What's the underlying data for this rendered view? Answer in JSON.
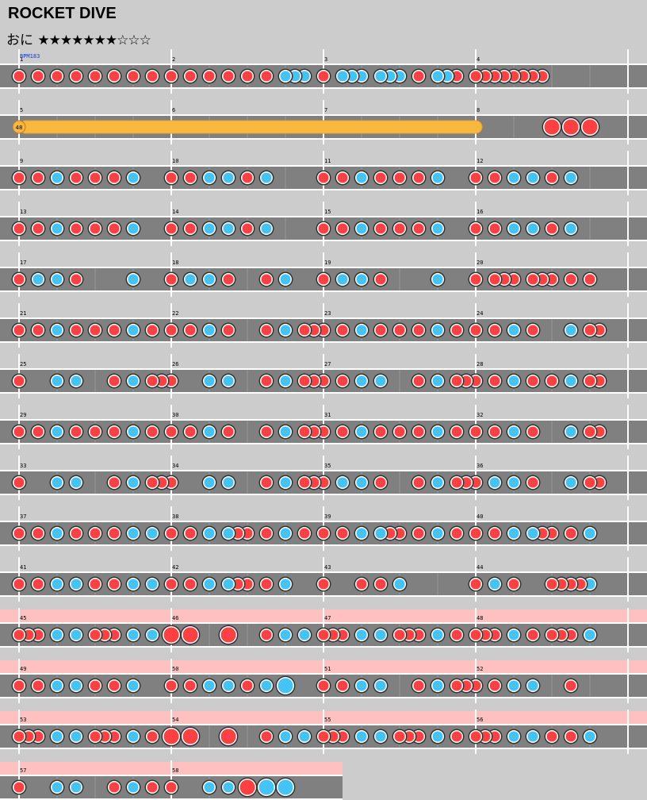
{
  "song": {
    "title": "ROCKET DIVE",
    "difficulty": "おに",
    "stars": "★★★★★★★☆☆☆",
    "bpm_label": "BPM183"
  },
  "colors": {
    "don": "#ff4040",
    "ka": "#44c4f4",
    "roll": "#f8b840",
    "gogo": "#ffc0c0",
    "lane": "#808080"
  },
  "chart_rows": [
    {
      "measures": [
        1,
        2,
        3,
        4
      ],
      "gogo": false,
      "notes": [
        "d 0",
        "d 0.125",
        "d 0.25",
        "d 0.375",
        "d 0.5",
        "d 0.625",
        "d 0.75",
        "d 0.875",
        "d 1",
        "d 1.125",
        "d 1.25",
        "d 1.375",
        "d 1.5",
        "d 1.625",
        "k 1.75",
        "k 1.8125",
        "k 1.875",
        "d 2",
        "k 2.125",
        "k 2.1875",
        "k 2.25",
        "k 2.375",
        "k 2.4375",
        "k 2.5",
        "d 2.625",
        "k 2.75",
        "k 2.8125",
        "d 2.875",
        "d 3.0",
        "d 3.0625",
        "d 3.125",
        "d 3.1875",
        "d 3.25",
        "d 3.3125",
        "d 3.375",
        "d 3.4375"
      ]
    },
    {
      "measures": [
        5,
        6,
        7,
        8
      ],
      "gogo": false,
      "roll": [
        0,
        3.0,
        "48"
      ],
      "notes": [
        "D 3.5",
        "D 3.625",
        "D 3.75"
      ]
    },
    {
      "measures": [
        9,
        10,
        11,
        12
      ],
      "gogo": false,
      "notes": [
        "d 0",
        "d 0.125",
        "k 0.25",
        "d 0.375",
        "d 0.5",
        "d 0.625",
        "k 0.75",
        "d 1",
        "d 1.125",
        "k 1.25",
        "k 1.375",
        "d 1.5",
        "k 1.625",
        "d 2",
        "d 2.125",
        "k 2.25",
        "d 2.375",
        "d 2.5",
        "d 2.625",
        "k 2.75",
        "d 3",
        "d 3.125",
        "k 3.25",
        "k 3.375",
        "d 3.5",
        "k 3.625"
      ]
    },
    {
      "measures": [
        13,
        14,
        15,
        16
      ],
      "gogo": false,
      "notes": [
        "d 0",
        "d 0.125",
        "k 0.25",
        "d 0.375",
        "d 0.5",
        "d 0.625",
        "k 0.75",
        "d 1",
        "d 1.125",
        "k 1.25",
        "k 1.375",
        "d 1.5",
        "k 1.625",
        "d 2",
        "d 2.125",
        "k 2.25",
        "d 2.375",
        "d 2.5",
        "d 2.625",
        "k 2.75",
        "d 3",
        "d 3.125",
        "k 3.25",
        "k 3.375",
        "d 3.5",
        "k 3.625"
      ]
    },
    {
      "measures": [
        17,
        18,
        19,
        20
      ],
      "gogo": false,
      "notes": [
        "d 0",
        "k 0.125",
        "k 0.25",
        "d 0.375",
        "k 0.75",
        "d 1",
        "k 1.125",
        "k 1.25",
        "d 1.375",
        "d 1.625",
        "k 1.75",
        "d 2",
        "k 2.125",
        "k 2.25",
        "d 2.375",
        "k 2.75",
        "d 3",
        "d 3.125",
        "d 3.1875",
        "d 3.25",
        "d 3.375",
        "d 3.4375",
        "d 3.5",
        "d 3.625",
        "d 3.75"
      ]
    },
    {
      "measures": [
        21,
        22,
        23,
        24
      ],
      "gogo": false,
      "notes": [
        "d 0",
        "d 0.125",
        "k 0.25",
        "d 0.375",
        "d 0.5",
        "d 0.625",
        "k 0.75",
        "d 0.875",
        "d 1",
        "d 1.125",
        "k 1.25",
        "d 1.375",
        "d 1.625",
        "k 1.75",
        "d 1.875",
        "d 1.9375",
        "d 2",
        "d 2.125",
        "k 2.25",
        "d 2.375",
        "d 2.5",
        "d 2.625",
        "k 2.75",
        "d 2.875",
        "d 3",
        "d 3.125",
        "k 3.25",
        "d 3.375",
        "k 3.625",
        "d 3.75",
        "d 3.8125"
      ]
    },
    {
      "measures": [
        25,
        26,
        27,
        28
      ],
      "gogo": false,
      "notes": [
        "d 0",
        "k 0.25",
        "k 0.375",
        "d 0.625",
        "k 0.75",
        "d 0.875",
        "d 0.9375",
        "d 1",
        "k 1.25",
        "k 1.375",
        "d 1.625",
        "k 1.75",
        "d 1.875",
        "d 1.9375",
        "d 2",
        "d 2.125",
        "k 2.25",
        "k 2.375",
        "d 2.625",
        "k 2.75",
        "d 2.875",
        "d 2.9375",
        "d 3",
        "d 3.125",
        "k 3.25",
        "d 3.375",
        "d 3.5",
        "k 3.625",
        "d 3.75",
        "d 3.8125"
      ]
    },
    {
      "measures": [
        29,
        30,
        31,
        32
      ],
      "gogo": false,
      "notes": [
        "d 0",
        "d 0.125",
        "k 0.25",
        "d 0.375",
        "d 0.5",
        "d 0.625",
        "k 0.75",
        "d 0.875",
        "d 1",
        "d 1.125",
        "k 1.25",
        "d 1.375",
        "d 1.625",
        "k 1.75",
        "d 1.875",
        "d 1.9375",
        "d 2",
        "d 2.125",
        "k 2.25",
        "d 2.375",
        "d 2.5",
        "d 2.625",
        "k 2.75",
        "d 2.875",
        "d 3",
        "d 3.125",
        "k 3.25",
        "d 3.375",
        "k 3.625",
        "d 3.75",
        "d 3.8125"
      ]
    },
    {
      "measures": [
        33,
        34,
        35,
        36
      ],
      "gogo": false,
      "notes": [
        "d 0",
        "k 0.25",
        "k 0.375",
        "d 0.625",
        "k 0.75",
        "d 0.875",
        "d 0.9375",
        "d 1",
        "k 1.25",
        "k 1.375",
        "d 1.625",
        "k 1.75",
        "d 1.875",
        "d 1.9375",
        "d 2",
        "k 2.125",
        "k 2.25",
        "d 2.375",
        "d 2.625",
        "k 2.75",
        "d 2.875",
        "d 2.9375",
        "d 3",
        "k 3.125",
        "k 3.25",
        "d 3.375",
        "k 3.625",
        "d 3.75",
        "d 3.8125"
      ]
    },
    {
      "measures": [
        37,
        38,
        39,
        40
      ],
      "gogo": false,
      "notes": [
        "d 0",
        "d 0.125",
        "k 0.25",
        "d 0.375",
        "d 0.5",
        "d 0.625",
        "k 0.75",
        "k 0.875",
        "d 1",
        "d 1.125",
        "k 1.25",
        "k 1.375",
        "d 1.4375",
        "d 1.5",
        "d 1.625",
        "k 1.75",
        "d 1.875",
        "d 2",
        "d 2.125",
        "k 2.25",
        "k 2.375",
        "d 2.4375",
        "d 2.5",
        "d 2.625",
        "k 2.75",
        "d 2.875",
        "d 3",
        "d 3.125",
        "k 3.25",
        "k 3.375",
        "d 3.4375",
        "d 3.5",
        "d 3.625",
        "k 3.75"
      ]
    },
    {
      "measures": [
        41,
        42,
        43,
        44
      ],
      "gogo": false,
      "notes": [
        "d 0",
        "d 0.125",
        "k 0.25",
        "k 0.375",
        "d 0.5",
        "d 0.625",
        "k 0.75",
        "k 0.875",
        "d 1",
        "d 1.125",
        "k 1.25",
        "k 1.375",
        "d 1.4375",
        "d 1.5",
        "d 1.625",
        "k 1.75",
        "d 2",
        "d 2.25",
        "d 2.375",
        "k 2.5",
        "d 3",
        "k 3.125",
        "d 3.25",
        "d 3.5",
        "d 3.5625",
        "d 3.625",
        "d 3.6875",
        "k 3.75"
      ]
    },
    {
      "measures": [
        45,
        46,
        47,
        48
      ],
      "gogo": true,
      "notes": [
        "d 0",
        "d 0.0625",
        "d 0.125",
        "k 0.25",
        "k 0.375",
        "d 0.5",
        "d 0.5625",
        "d 0.625",
        "k 0.75",
        "k 0.875",
        "D 1",
        "D 1.125",
        "D 1.375",
        "d 1.625",
        "k 1.75",
        "k 1.875",
        "d 2",
        "d 2.0625",
        "d 2.125",
        "k 2.25",
        "k 2.375",
        "d 2.5",
        "d 2.5625",
        "d 2.625",
        "k 2.75",
        "d 2.875",
        "d 3",
        "d 3.0625",
        "d 3.125",
        "k 3.25",
        "d 3.375",
        "d 3.5",
        "d 3.5625",
        "d 3.625",
        "k 3.75"
      ]
    },
    {
      "measures": [
        49,
        50,
        51,
        52
      ],
      "gogo": true,
      "notes": [
        "d 0",
        "d 0.125",
        "k 0.25",
        "k 0.375",
        "d 0.5",
        "d 0.625",
        "k 0.75",
        "d 1",
        "d 1.125",
        "k 1.25",
        "k 1.375",
        "d 1.5",
        "k 1.625",
        "K 1.75",
        "d 2",
        "d 2.125",
        "k 2.25",
        "k 2.375",
        "d 2.625",
        "k 2.75",
        "d 2.875",
        "d 2.9375",
        "d 3",
        "d 3.125",
        "k 3.25",
        "k 3.375",
        "d 3.625"
      ]
    },
    {
      "measures": [
        53,
        54,
        55,
        56
      ],
      "gogo": true,
      "notes": [
        "d 0",
        "d 0.0625",
        "d 0.125",
        "k 0.25",
        "k 0.375",
        "d 0.5",
        "d 0.5625",
        "d 0.625",
        "k 0.75",
        "d 0.875",
        "D 1",
        "D 1.125",
        "D 1.375",
        "d 1.625",
        "k 1.75",
        "k 1.875",
        "d 2",
        "d 2.0625",
        "d 2.125",
        "k 2.25",
        "k 2.375",
        "d 2.5",
        "d 2.5625",
        "d 2.625",
        "k 2.75",
        "d 2.875",
        "d 3",
        "d 3.0625",
        "d 3.125",
        "k 3.25",
        "k 3.375",
        "d 3.5",
        "d 3.625",
        "k 3.75"
      ]
    },
    {
      "measures": [
        57,
        58
      ],
      "gogo": true,
      "notes": [
        "d 0",
        "k 0.25",
        "k 0.375",
        "d 0.625",
        "k 0.75",
        "d 0.875",
        "d 1",
        "k 1.25",
        "k 1.375",
        "D 1.5",
        "K 1.625",
        "K 1.75"
      ]
    }
  ]
}
